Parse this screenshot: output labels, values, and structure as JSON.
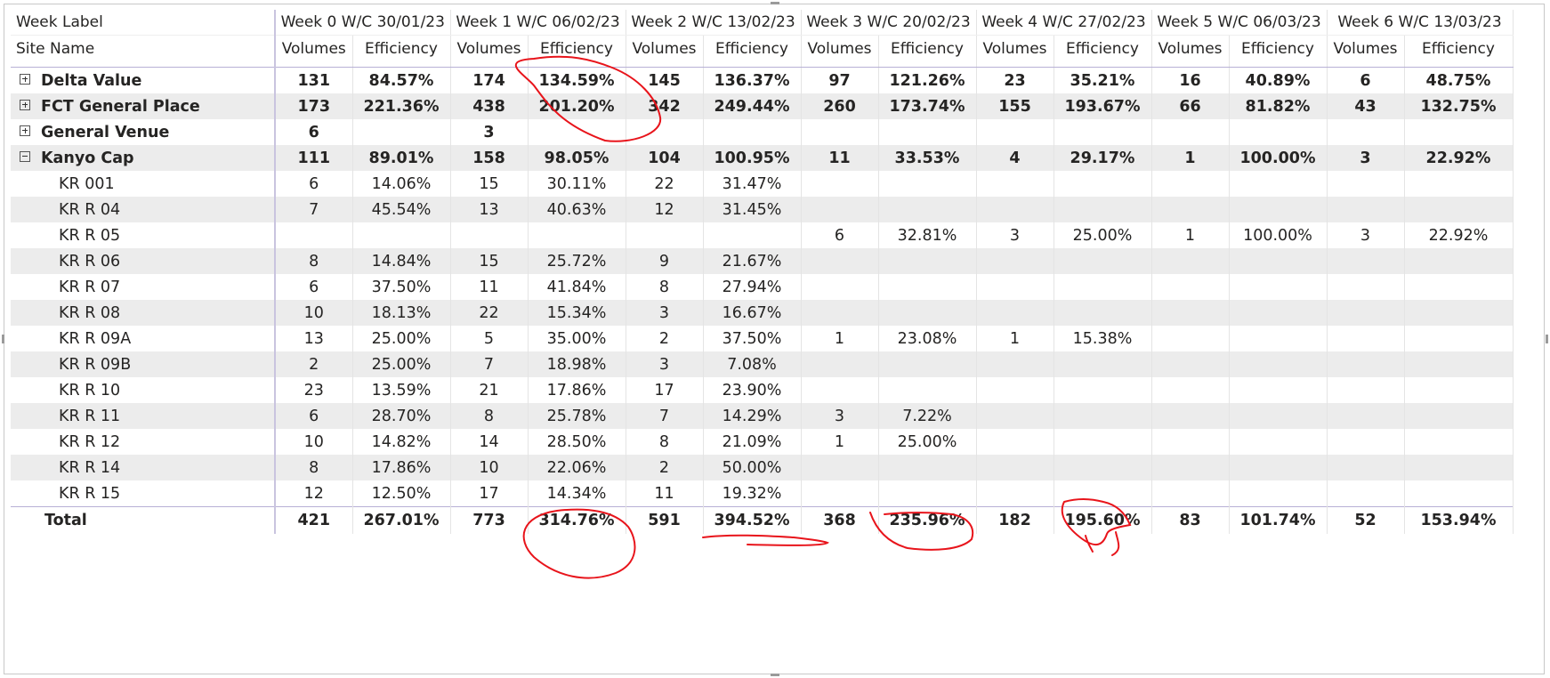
{
  "header": {
    "row_label": "Week Label",
    "col_label": "Site Name",
    "weeks": [
      "Week 0 W/C 30/01/23",
      "Week 1 W/C 06/02/23",
      "Week 2 W/C 13/02/23",
      "Week 3 W/C 20/02/23",
      "Week 4 W/C 27/02/23",
      "Week 5 W/C 06/03/23",
      "Week 6 W/C 13/03/23"
    ],
    "volumes_label": "Volumes",
    "efficiency_label": "Efficiency"
  },
  "rows": [
    {
      "name": "Delta Value",
      "level": 0,
      "expander": "plus",
      "bold": true,
      "cells": [
        [
          "131",
          "84.57%"
        ],
        [
          "174",
          "134.59%"
        ],
        [
          "145",
          "136.37%"
        ],
        [
          "97",
          "121.26%"
        ],
        [
          "23",
          "35.21%"
        ],
        [
          "16",
          "40.89%"
        ],
        [
          "6",
          "48.75%"
        ]
      ]
    },
    {
      "name": "FCT General Place",
      "level": 0,
      "expander": "plus",
      "bold": true,
      "cells": [
        [
          "173",
          "221.36%"
        ],
        [
          "438",
          "201.20%"
        ],
        [
          "342",
          "249.44%"
        ],
        [
          "260",
          "173.74%"
        ],
        [
          "155",
          "193.67%"
        ],
        [
          "66",
          "81.82%"
        ],
        [
          "43",
          "132.75%"
        ]
      ]
    },
    {
      "name": "General Venue",
      "level": 0,
      "expander": "plus",
      "bold": true,
      "cells": [
        [
          "6",
          ""
        ],
        [
          "3",
          ""
        ],
        [
          "",
          ""
        ],
        [
          "",
          ""
        ],
        [
          "",
          ""
        ],
        [
          "",
          ""
        ],
        [
          "",
          ""
        ]
      ]
    },
    {
      "name": "Kanyo Cap",
      "level": 0,
      "expander": "minus",
      "bold": true,
      "cells": [
        [
          "111",
          "89.01%"
        ],
        [
          "158",
          "98.05%"
        ],
        [
          "104",
          "100.95%"
        ],
        [
          "11",
          "33.53%"
        ],
        [
          "4",
          "29.17%"
        ],
        [
          "1",
          "100.00%"
        ],
        [
          "3",
          "22.92%"
        ]
      ]
    },
    {
      "name": "KR 001",
      "level": 1,
      "cells": [
        [
          "6",
          "14.06%"
        ],
        [
          "15",
          "30.11%"
        ],
        [
          "22",
          "31.47%"
        ],
        [
          "",
          ""
        ],
        [
          "",
          ""
        ],
        [
          "",
          ""
        ],
        [
          "",
          ""
        ]
      ]
    },
    {
      "name": "KR R 04",
      "level": 1,
      "cells": [
        [
          "7",
          "45.54%"
        ],
        [
          "13",
          "40.63%"
        ],
        [
          "12",
          "31.45%"
        ],
        [
          "",
          ""
        ],
        [
          "",
          ""
        ],
        [
          "",
          ""
        ],
        [
          "",
          ""
        ]
      ]
    },
    {
      "name": "KR R 05",
      "level": 1,
      "cells": [
        [
          "",
          ""
        ],
        [
          "",
          ""
        ],
        [
          "",
          ""
        ],
        [
          "6",
          "32.81%"
        ],
        [
          "3",
          "25.00%"
        ],
        [
          "1",
          "100.00%"
        ],
        [
          "3",
          "22.92%"
        ]
      ]
    },
    {
      "name": "KR R 06",
      "level": 1,
      "cells": [
        [
          "8",
          "14.84%"
        ],
        [
          "15",
          "25.72%"
        ],
        [
          "9",
          "21.67%"
        ],
        [
          "",
          ""
        ],
        [
          "",
          ""
        ],
        [
          "",
          ""
        ],
        [
          "",
          ""
        ]
      ]
    },
    {
      "name": "KR R 07",
      "level": 1,
      "cells": [
        [
          "6",
          "37.50%"
        ],
        [
          "11",
          "41.84%"
        ],
        [
          "8",
          "27.94%"
        ],
        [
          "",
          ""
        ],
        [
          "",
          ""
        ],
        [
          "",
          ""
        ],
        [
          "",
          ""
        ]
      ]
    },
    {
      "name": "KR R 08",
      "level": 1,
      "cells": [
        [
          "10",
          "18.13%"
        ],
        [
          "22",
          "15.34%"
        ],
        [
          "3",
          "16.67%"
        ],
        [
          "",
          ""
        ],
        [
          "",
          ""
        ],
        [
          "",
          ""
        ],
        [
          "",
          ""
        ]
      ]
    },
    {
      "name": "KR R 09A",
      "level": 1,
      "cells": [
        [
          "13",
          "25.00%"
        ],
        [
          "5",
          "35.00%"
        ],
        [
          "2",
          "37.50%"
        ],
        [
          "1",
          "23.08%"
        ],
        [
          "1",
          "15.38%"
        ],
        [
          "",
          ""
        ],
        [
          "",
          ""
        ]
      ]
    },
    {
      "name": "KR R 09B",
      "level": 1,
      "cells": [
        [
          "2",
          "25.00%"
        ],
        [
          "7",
          "18.98%"
        ],
        [
          "3",
          "7.08%"
        ],
        [
          "",
          ""
        ],
        [
          "",
          ""
        ],
        [
          "",
          ""
        ],
        [
          "",
          ""
        ]
      ]
    },
    {
      "name": "KR R 10",
      "level": 1,
      "cells": [
        [
          "23",
          "13.59%"
        ],
        [
          "21",
          "17.86%"
        ],
        [
          "17",
          "23.90%"
        ],
        [
          "",
          ""
        ],
        [
          "",
          ""
        ],
        [
          "",
          ""
        ],
        [
          "",
          ""
        ]
      ]
    },
    {
      "name": "KR R 11",
      "level": 1,
      "cells": [
        [
          "6",
          "28.70%"
        ],
        [
          "8",
          "25.78%"
        ],
        [
          "7",
          "14.29%"
        ],
        [
          "3",
          "7.22%"
        ],
        [
          "",
          ""
        ],
        [
          "",
          ""
        ],
        [
          "",
          ""
        ]
      ]
    },
    {
      "name": "KR R 12",
      "level": 1,
      "cells": [
        [
          "10",
          "14.82%"
        ],
        [
          "14",
          "28.50%"
        ],
        [
          "8",
          "21.09%"
        ],
        [
          "1",
          "25.00%"
        ],
        [
          "",
          ""
        ],
        [
          "",
          ""
        ],
        [
          "",
          ""
        ]
      ]
    },
    {
      "name": "KR R 14",
      "level": 1,
      "cells": [
        [
          "8",
          "17.86%"
        ],
        [
          "10",
          "22.06%"
        ],
        [
          "2",
          "50.00%"
        ],
        [
          "",
          ""
        ],
        [
          "",
          ""
        ],
        [
          "",
          ""
        ],
        [
          "",
          ""
        ]
      ]
    },
    {
      "name": "KR R 15",
      "level": 1,
      "cells": [
        [
          "12",
          "12.50%"
        ],
        [
          "17",
          "14.34%"
        ],
        [
          "11",
          "19.32%"
        ],
        [
          "",
          ""
        ],
        [
          "",
          ""
        ],
        [
          "",
          ""
        ],
        [
          "",
          ""
        ]
      ]
    }
  ],
  "total": {
    "label": "Total",
    "cells": [
      [
        "421",
        "267.01%"
      ],
      [
        "773",
        "314.76%"
      ],
      [
        "591",
        "394.52%"
      ],
      [
        "368",
        "235.96%"
      ],
      [
        "182",
        "195.60%"
      ],
      [
        "83",
        "101.74%"
      ],
      [
        "52",
        "153.94%"
      ]
    ]
  },
  "annotation_color": "#e8141b"
}
